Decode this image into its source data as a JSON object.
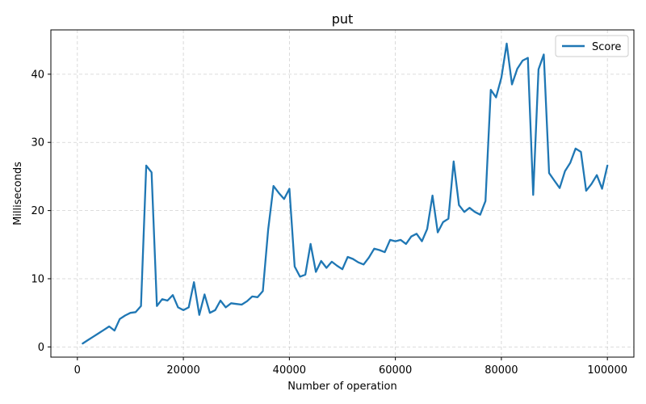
{
  "chart_data": {
    "type": "line",
    "title": "put",
    "xlabel": "Number of operation",
    "ylabel": "Milliseconds",
    "xlim": [
      -5000,
      105000
    ],
    "ylim": [
      -1.5,
      46.5
    ],
    "xticks": [
      0,
      20000,
      40000,
      60000,
      80000,
      100000
    ],
    "yticks": [
      0,
      10,
      20,
      30,
      40
    ],
    "grid": true,
    "legend_position": "top-right",
    "series": [
      {
        "name": "Score",
        "color": "#1f77b4",
        "x": [
          1000,
          2000,
          3000,
          4000,
          5000,
          6000,
          7000,
          8000,
          9000,
          10000,
          11000,
          12000,
          13000,
          14000,
          15000,
          16000,
          17000,
          18000,
          19000,
          20000,
          21000,
          22000,
          23000,
          24000,
          25000,
          26000,
          27000,
          28000,
          29000,
          30000,
          31000,
          32000,
          33000,
          34000,
          35000,
          36000,
          37000,
          38000,
          39000,
          40000,
          41000,
          42000,
          43000,
          44000,
          45000,
          46000,
          47000,
          48000,
          49000,
          50000,
          51000,
          52000,
          53000,
          54000,
          55000,
          56000,
          57000,
          58000,
          59000,
          60000,
          61000,
          62000,
          63000,
          64000,
          65000,
          66000,
          67000,
          68000,
          69000,
          70000,
          71000,
          72000,
          73000,
          74000,
          75000,
          76000,
          77000,
          78000,
          79000,
          80000,
          81000,
          82000,
          83000,
          84000,
          85000,
          86000,
          87000,
          88000,
          89000,
          90000,
          91000,
          92000,
          93000,
          94000,
          95000,
          96000,
          97000,
          98000,
          99000,
          100000
        ],
        "y": [
          0.5,
          1.0,
          1.5,
          2.0,
          2.5,
          3.0,
          2.4,
          4.1,
          4.6,
          5.0,
          5.1,
          6.0,
          26.6,
          25.6,
          6.0,
          7.0,
          6.8,
          7.6,
          5.8,
          5.4,
          5.8,
          9.5,
          4.7,
          7.7,
          5.0,
          5.4,
          6.8,
          5.8,
          6.4,
          6.3,
          6.2,
          6.7,
          7.4,
          7.3,
          8.2,
          17.2,
          23.6,
          22.6,
          21.7,
          23.2,
          11.8,
          10.3,
          10.6,
          15.1,
          11.0,
          12.6,
          11.6,
          12.5,
          11.9,
          11.4,
          13.2,
          12.9,
          12.4,
          12.1,
          13.1,
          14.4,
          14.2,
          13.9,
          15.7,
          15.5,
          15.7,
          15.1,
          16.2,
          16.6,
          15.5,
          17.3,
          22.2,
          16.8,
          18.3,
          18.8,
          27.2,
          20.8,
          19.8,
          20.4,
          19.8,
          19.4,
          21.4,
          37.7,
          36.6,
          39.5,
          44.5,
          38.5,
          40.8,
          42.0,
          42.4,
          22.3,
          40.7,
          42.9,
          25.5,
          24.4,
          23.3,
          25.8,
          27.0,
          29.1,
          28.6,
          22.9,
          23.9,
          25.2,
          23.2,
          26.6
        ]
      }
    ]
  }
}
